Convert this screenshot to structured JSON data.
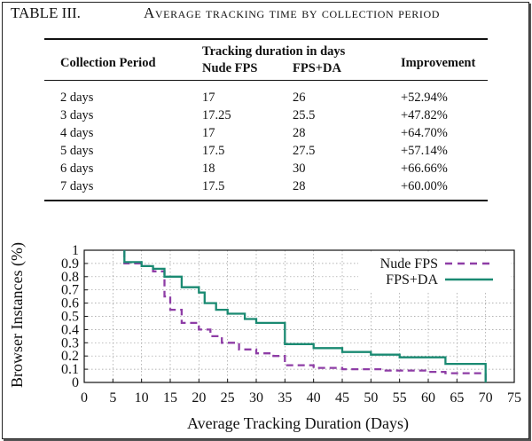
{
  "table": {
    "label": "TABLE III.",
    "title": "Average tracking time by collection period",
    "headers": {
      "collection_period": "Collection Period",
      "duration_group": "Tracking duration in days",
      "nude_fps": "Nude FPS",
      "fps_da": "FPS+DA",
      "improvement": "Improvement"
    },
    "rows": [
      {
        "period": "2 days",
        "nude": "17",
        "fpsda": "26",
        "improvement": "+52.94%"
      },
      {
        "period": "3 days",
        "nude": "17.25",
        "fpsda": "25.5",
        "improvement": "+47.82%"
      },
      {
        "period": "4 days",
        "nude": "17",
        "fpsda": "28",
        "improvement": "+64.70%"
      },
      {
        "period": "5 days",
        "nude": "17.5",
        "fpsda": "27.5",
        "improvement": "+57.14%"
      },
      {
        "period": "6 days",
        "nude": "18",
        "fpsda": "30",
        "improvement": "+66.66%"
      },
      {
        "period": "7 days",
        "nude": "17.5",
        "fpsda": "28",
        "improvement": "+60.00%"
      }
    ]
  },
  "chart_data": {
    "type": "line",
    "xlabel": "Average Tracking Duration (Days)",
    "ylabel": "Browser Instances (%)",
    "xlim": [
      0,
      75
    ],
    "ylim": [
      0,
      1
    ],
    "xticks": [
      "0",
      "5",
      "10",
      "15",
      "20",
      "25",
      "30",
      "35",
      "40",
      "45",
      "50",
      "55",
      "60",
      "65",
      "70",
      "75"
    ],
    "yticks": [
      "0",
      "0.1",
      "0.2",
      "0.3",
      "0.4",
      "0.5",
      "0.6",
      "0.7",
      "0.8",
      "0.9",
      "1"
    ],
    "grid": true,
    "legend_position": "top-right",
    "series": [
      {
        "name": "Nude FPS",
        "color": "#8e3da6",
        "style": "dashed",
        "points": [
          [
            7,
            1
          ],
          [
            7,
            0.9
          ],
          [
            10,
            0.9
          ],
          [
            10,
            0.88
          ],
          [
            12,
            0.88
          ],
          [
            12,
            0.84
          ],
          [
            14,
            0.84
          ],
          [
            14,
            0.65
          ],
          [
            15,
            0.65
          ],
          [
            15,
            0.55
          ],
          [
            17,
            0.55
          ],
          [
            17,
            0.45
          ],
          [
            20,
            0.45
          ],
          [
            20,
            0.4
          ],
          [
            22,
            0.4
          ],
          [
            22,
            0.35
          ],
          [
            24,
            0.35
          ],
          [
            24,
            0.3
          ],
          [
            27,
            0.3
          ],
          [
            27,
            0.25
          ],
          [
            30,
            0.25
          ],
          [
            30,
            0.22
          ],
          [
            33,
            0.22
          ],
          [
            33,
            0.2
          ],
          [
            35,
            0.2
          ],
          [
            35,
            0.13
          ],
          [
            40,
            0.13
          ],
          [
            40,
            0.11
          ],
          [
            45,
            0.11
          ],
          [
            45,
            0.1
          ],
          [
            52,
            0.1
          ],
          [
            52,
            0.09
          ],
          [
            60,
            0.09
          ],
          [
            60,
            0.08
          ],
          [
            63,
            0.08
          ],
          [
            63,
            0.07
          ],
          [
            70,
            0.07
          ],
          [
            70,
            0
          ]
        ]
      },
      {
        "name": "FPS+DA",
        "color": "#1a8a72",
        "style": "solid",
        "points": [
          [
            7,
            1
          ],
          [
            7,
            0.91
          ],
          [
            10,
            0.91
          ],
          [
            10,
            0.88
          ],
          [
            12,
            0.88
          ],
          [
            12,
            0.86
          ],
          [
            14,
            0.86
          ],
          [
            14,
            0.8
          ],
          [
            17,
            0.8
          ],
          [
            17,
            0.72
          ],
          [
            20,
            0.72
          ],
          [
            20,
            0.68
          ],
          [
            21,
            0.68
          ],
          [
            21,
            0.6
          ],
          [
            23,
            0.6
          ],
          [
            23,
            0.55
          ],
          [
            25,
            0.55
          ],
          [
            25,
            0.52
          ],
          [
            28,
            0.52
          ],
          [
            28,
            0.48
          ],
          [
            30,
            0.48
          ],
          [
            30,
            0.45
          ],
          [
            35,
            0.45
          ],
          [
            35,
            0.29
          ],
          [
            40,
            0.29
          ],
          [
            40,
            0.26
          ],
          [
            45,
            0.26
          ],
          [
            45,
            0.23
          ],
          [
            50,
            0.23
          ],
          [
            50,
            0.21
          ],
          [
            55,
            0.21
          ],
          [
            55,
            0.19
          ],
          [
            63,
            0.19
          ],
          [
            63,
            0.14
          ],
          [
            70,
            0.14
          ],
          [
            70,
            0
          ]
        ]
      }
    ]
  }
}
